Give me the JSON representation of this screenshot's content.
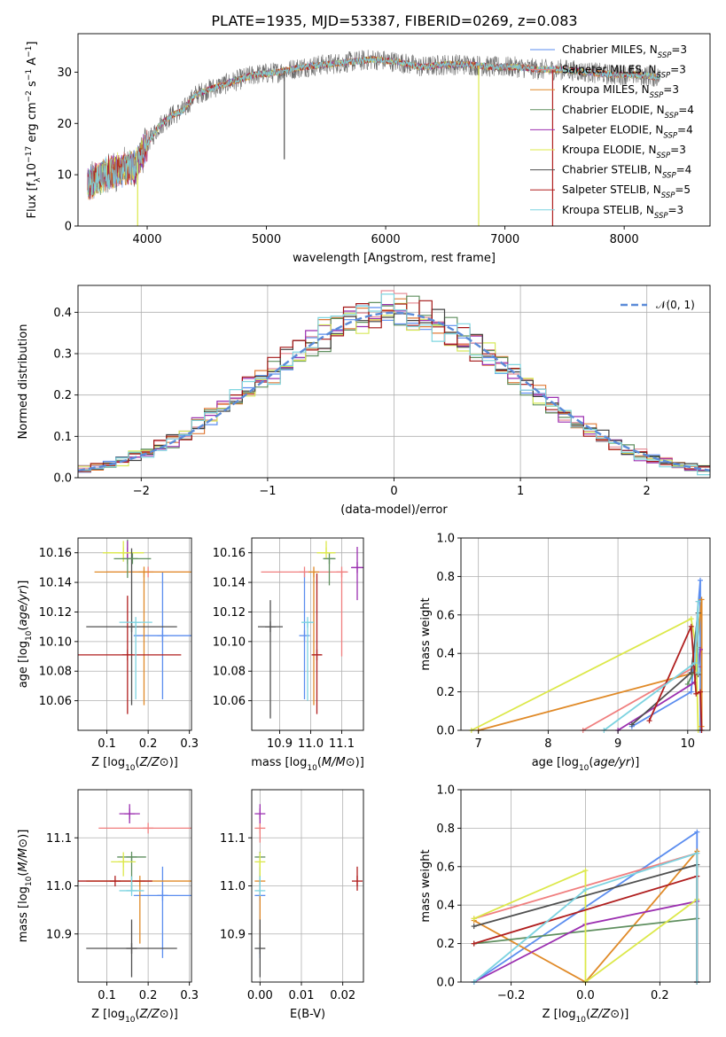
{
  "title": "PLATE=1935, MJD=53387, FIBERID=0269, z=0.083",
  "colors": [
    "#5b8def",
    "#f07f7f",
    "#e08a28",
    "#5f8f5f",
    "#9b2fb0",
    "#dce84a",
    "#505050",
    "#b01f1f",
    "#7dd3e0"
  ],
  "hist_colors": [
    "#5b8def",
    "#e7919a",
    "#e07b39",
    "#5f8f5f",
    "#9b2fb0",
    "#d6e85a",
    "#404040",
    "#a31515",
    "#7fd6e0"
  ],
  "chart_data": [
    {
      "id": "spectrum",
      "type": "line",
      "title": "PLATE=1935, MJD=53387, FIBERID=0269, z=0.083",
      "xlabel": "wavelength [Angstrom, rest frame]",
      "ylabel_parts": [
        "Flux [f",
        "λ",
        "10",
        "−17",
        " erg cm",
        "−2",
        " s",
        "−1",
        " A",
        "−1",
        "]"
      ],
      "xlim": [
        3420,
        8720
      ],
      "ylim": [
        0,
        37.5
      ],
      "xticks": [
        4000,
        5000,
        6000,
        7000,
        8000
      ],
      "yticks": [
        0,
        10,
        20,
        30
      ],
      "grid": false,
      "legend_position": "top-right",
      "legend": [
        {
          "text": "Chabrier MILES, N",
          "sub": "SSP",
          "tail": "=3"
        },
        {
          "text": "Salpeter MILES, N",
          "sub": "SSP",
          "tail": "=3"
        },
        {
          "text": "Kroupa MILES, N",
          "sub": "SSP",
          "tail": "=3"
        },
        {
          "text": "Chabrier ELODIE, N",
          "sub": "SSP",
          "tail": "=4"
        },
        {
          "text": "Salpeter ELODIE, N",
          "sub": "SSP",
          "tail": "=4"
        },
        {
          "text": "Kroupa ELODIE, N",
          "sub": "SSP",
          "tail": "=3"
        },
        {
          "text": "Chabrier STELIB, N",
          "sub": "SSP",
          "tail": "=4"
        },
        {
          "text": "Salpeter STELIB, N",
          "sub": "SSP",
          "tail": "=5"
        },
        {
          "text": "Kroupa STELIB, N",
          "sub": "SSP",
          "tail": "=3"
        }
      ],
      "continuum": {
        "x": [
          3500,
          3600,
          3700,
          3800,
          3900,
          4000,
          4100,
          4200,
          4300,
          4400,
          4500,
          4700,
          4900,
          5100,
          5300,
          5500,
          5700,
          5900,
          6100,
          6300,
          6500,
          6700,
          6900,
          7100,
          7300,
          7500,
          7700,
          7900,
          8100,
          8300
        ],
        "y": [
          8,
          9.5,
          10.5,
          11,
          11.5,
          16,
          19.5,
          21.5,
          22.5,
          25.5,
          26.5,
          28,
          29.5,
          30,
          31,
          31.5,
          32,
          32.5,
          32,
          31,
          31.5,
          31.5,
          31,
          31,
          30.5,
          30.5,
          30,
          29.5,
          29.5,
          29
        ]
      },
      "spikes": [
        {
          "x": 5150,
          "y_min": 13,
          "color_index": 6
        },
        {
          "x": 6780,
          "y_min": 0,
          "color_index": 5
        },
        {
          "x": 7400,
          "y_min": 0,
          "color_index": 7
        },
        {
          "x": 3920,
          "y_min": 0,
          "color_index": 5
        }
      ]
    },
    {
      "id": "residuals",
      "type": "histogram",
      "xlabel": "(data-model)/error",
      "ylabel": "Normed distribution",
      "xlim": [
        -2.5,
        2.5
      ],
      "ylim": [
        0,
        0.465
      ],
      "xticks": [
        -2,
        -1,
        0,
        1,
        2
      ],
      "yticks": [
        0.0,
        0.1,
        0.2,
        0.3,
        0.4
      ],
      "grid": true,
      "legend_position": "top-right",
      "reference_curve": {
        "label": "𝒩(0, 1)",
        "mean": 0,
        "sigma": 1,
        "color": "#5b8bd8"
      },
      "bin_width": 0.1,
      "bin_start": -2.5,
      "n_bins": 50
    },
    {
      "id": "age_vs_Z",
      "type": "scatter",
      "xlabel": "Z [log10(Z/Z⊙)]",
      "ylabel": "age  [log10(age/yr)]",
      "xlim": [
        0.03,
        0.305
      ],
      "ylim": [
        10.04,
        10.17
      ],
      "xticks": [
        0.1,
        0.2,
        0.3
      ],
      "yticks": [
        10.06,
        10.08,
        10.1,
        10.12,
        10.14,
        10.16
      ],
      "grid": true,
      "points": [
        {
          "x": 0.235,
          "y": 10.104,
          "xerr": 0.07,
          "yerr_lo": 0.043,
          "yerr_hi": 0.043,
          "color_index": 0
        },
        {
          "x": 0.2,
          "y": 10.147,
          "xerr": 0.1,
          "yerr_lo": 0.0,
          "yerr_hi": 0.0,
          "color_index": 1
        },
        {
          "x": 0.19,
          "y": 10.147,
          "xerr": 0.12,
          "yerr_lo": 0.09,
          "yerr_hi": 0.0,
          "color_index": 2
        },
        {
          "x": 0.15,
          "y": 10.156,
          "xerr": 0.0,
          "yerr_lo": 0.013,
          "yerr_hi": 0.013,
          "color_index": 3
        },
        {
          "x": 0.15,
          "y": 10.16,
          "xerr": 0.0,
          "yerr_lo": 0.004,
          "yerr_hi": 0.008,
          "color_index": 4
        },
        {
          "x": 0.14,
          "y": 10.16,
          "xerr": 0.05,
          "yerr_lo": 0.006,
          "yerr_hi": 0.008,
          "color_index": 5
        },
        {
          "x": 0.16,
          "y": 10.11,
          "xerr": 0.11,
          "yerr_lo": 0.053,
          "yerr_hi": 0.053,
          "color_index": 6
        },
        {
          "x": 0.15,
          "y": 10.091,
          "xerr": 0.13,
          "yerr_lo": 0.04,
          "yerr_hi": 0.04,
          "color_index": 7
        },
        {
          "x": 0.17,
          "y": 10.113,
          "xerr": 0.04,
          "yerr_lo": 0.052,
          "yerr_hi": 0.0,
          "color_index": 8
        },
        {
          "x": 0.162,
          "y": 10.156,
          "xerr": 0.045,
          "yerr_lo": 0.0,
          "yerr_hi": 0.0,
          "color_index": 3
        }
      ]
    },
    {
      "id": "age_vs_mass",
      "type": "scatter",
      "xlabel": "mass [log10(M/M⊙)]",
      "ylabel": "",
      "xlim": [
        10.81,
        11.17
      ],
      "ylim": [
        10.04,
        10.17
      ],
      "xticks": [
        10.9,
        11.0,
        11.1
      ],
      "yticks": [
        10.06,
        10.08,
        10.1,
        10.12,
        10.14,
        10.16
      ],
      "grid": true,
      "points": [
        {
          "x": 10.98,
          "y": 10.104,
          "xerr": 0.0,
          "yerr_lo": 0.043,
          "yerr_hi": 0.043,
          "color_index": 0
        },
        {
          "x": 10.98,
          "y": 10.147,
          "xerr": 0.14,
          "yerr_lo": 0.0,
          "yerr_hi": 0.0,
          "color_index": 1
        },
        {
          "x": 11.1,
          "y": 10.147,
          "xerr": 0.0,
          "yerr_lo": 0.057,
          "yerr_hi": 0.0,
          "color_index": 1
        },
        {
          "x": 11.01,
          "y": 10.147,
          "xerr": 0.0,
          "yerr_lo": 0.09,
          "yerr_hi": 0.0,
          "color_index": 2
        },
        {
          "x": 11.06,
          "y": 10.156,
          "xerr": 0.02,
          "yerr_lo": 0.018,
          "yerr_hi": 0.0,
          "color_index": 3
        },
        {
          "x": 11.15,
          "y": 10.15,
          "xerr": 0.02,
          "yerr_lo": 0.022,
          "yerr_hi": 0.014,
          "color_index": 4
        },
        {
          "x": 11.05,
          "y": 10.16,
          "xerr": 0.03,
          "yerr_lo": 0.0,
          "yerr_hi": 0.008,
          "color_index": 5
        },
        {
          "x": 10.87,
          "y": 10.11,
          "xerr": 0.04,
          "yerr_lo": 0.062,
          "yerr_hi": 0.018,
          "color_index": 6
        },
        {
          "x": 11.02,
          "y": 10.091,
          "xerr": 0.015,
          "yerr_lo": 0.04,
          "yerr_hi": 0.055,
          "color_index": 7
        },
        {
          "x": 10.99,
          "y": 10.113,
          "xerr": 0.02,
          "yerr_lo": 0.053,
          "yerr_hi": 0.0,
          "color_index": 8
        }
      ]
    },
    {
      "id": "weight_vs_age",
      "type": "line",
      "xlabel": "age  [log10(age/yr)]",
      "ylabel": "mass weight",
      "xlim": [
        6.75,
        10.32
      ],
      "ylim": [
        0,
        1
      ],
      "xticks": [
        7,
        8,
        9,
        10
      ],
      "yticks": [
        0.0,
        0.2,
        0.4,
        0.6,
        0.8,
        1.0
      ],
      "grid": true,
      "series": [
        {
          "color_index": 0,
          "x": [
            9.2,
            10.05,
            10.18,
            10.18
          ],
          "y": [
            0.02,
            0.2,
            0.78,
            0.0
          ]
        },
        {
          "color_index": 1,
          "x": [
            8.5,
            10.1,
            10.15
          ],
          "y": [
            0.0,
            0.33,
            0.67
          ]
        },
        {
          "color_index": 2,
          "x": [
            7.0,
            10.1,
            10.2,
            10.2
          ],
          "y": [
            0.0,
            0.3,
            0.68,
            0.02
          ]
        },
        {
          "color_index": 3,
          "x": [
            10.0,
            10.12,
            10.15
          ],
          "y": [
            0.24,
            0.33,
            0.43
          ]
        },
        {
          "color_index": 4,
          "x": [
            9.0,
            10.1,
            10.15,
            10.18
          ],
          "y": [
            0.0,
            0.25,
            0.33,
            0.42
          ]
        },
        {
          "color_index": 5,
          "x": [
            6.9,
            10.05,
            10.12,
            10.15
          ],
          "y": [
            0.0,
            0.58,
            0.43,
            0.0
          ]
        },
        {
          "color_index": 6,
          "x": [
            9.2,
            10.05,
            10.15,
            10.15
          ],
          "y": [
            0.03,
            0.3,
            0.61,
            0.29
          ]
        },
        {
          "color_index": 7,
          "x": [
            9.45,
            10.05,
            10.12,
            10.18,
            10.2
          ],
          "y": [
            0.05,
            0.54,
            0.19,
            0.2,
            0.0
          ]
        },
        {
          "color_index": 8,
          "x": [
            8.8,
            10.1,
            10.15,
            10.15
          ],
          "y": [
            0.0,
            0.35,
            0.67,
            0.3
          ]
        }
      ]
    },
    {
      "id": "mass_vs_Z",
      "type": "scatter",
      "xlabel": "Z [log10(Z/Z⊙)]",
      "ylabel": "mass [log10(M/M⊙)]",
      "xlim": [
        0.03,
        0.305
      ],
      "ylim": [
        10.8,
        11.2
      ],
      "xticks": [
        0.1,
        0.2,
        0.3
      ],
      "yticks": [
        10.9,
        11.0,
        11.1
      ],
      "grid": true,
      "points": [
        {
          "x": 0.235,
          "y": 10.98,
          "xerr": 0.07,
          "yerr_lo": 0.13,
          "yerr_hi": 0.06,
          "color_index": 0
        },
        {
          "x": 0.2,
          "y": 11.12,
          "xerr": 0.12,
          "yerr_lo": 0.0,
          "yerr_hi": 0.0,
          "color_index": 1
        },
        {
          "x": 0.18,
          "y": 11.01,
          "xerr": 0.13,
          "yerr_lo": 0.13,
          "yerr_hi": 0.0,
          "color_index": 2
        },
        {
          "x": 0.16,
          "y": 11.06,
          "xerr": 0.035,
          "yerr_lo": 0.07,
          "yerr_hi": 0.0,
          "color_index": 3
        },
        {
          "x": 0.155,
          "y": 11.15,
          "xerr": 0.025,
          "yerr_lo": 0.02,
          "yerr_hi": 0.02,
          "color_index": 4
        },
        {
          "x": 0.14,
          "y": 11.05,
          "xerr": 0.03,
          "yerr_lo": 0.03,
          "yerr_hi": 0.02,
          "color_index": 5
        },
        {
          "x": 0.16,
          "y": 10.87,
          "xerr": 0.11,
          "yerr_lo": 0.06,
          "yerr_hi": 0.06,
          "color_index": 6
        },
        {
          "x": 0.12,
          "y": 11.01,
          "xerr": 0.09,
          "yerr_lo": 0.0,
          "yerr_hi": 0.0,
          "color_index": 7
        },
        {
          "x": 0.16,
          "y": 10.99,
          "xerr": 0.03,
          "yerr_lo": 0.0,
          "yerr_hi": 0.03,
          "color_index": 8
        }
      ]
    },
    {
      "id": "mass_vs_ebv",
      "type": "scatter",
      "xlabel": "E(B-V)",
      "ylabel": "",
      "xlim": [
        -0.002,
        0.025
      ],
      "ylim": [
        10.8,
        11.2
      ],
      "xticks": [
        0.0,
        0.01,
        0.02
      ],
      "yticks": [
        10.9,
        11.0,
        11.1
      ],
      "grid": true,
      "points": [
        {
          "x": 0.0,
          "y": 10.98,
          "xerr": 0.0,
          "yerr_lo": 0.13,
          "yerr_hi": 0.06,
          "color_index": 0
        },
        {
          "x": 0.0,
          "y": 11.12,
          "xerr": 0.0,
          "yerr_lo": 0.03,
          "yerr_hi": 0.03,
          "color_index": 1
        },
        {
          "x": 0.0,
          "y": 11.01,
          "xerr": 0.0,
          "yerr_lo": 0.13,
          "yerr_hi": 0.0,
          "color_index": 2
        },
        {
          "x": 0.0,
          "y": 11.06,
          "xerr": 0.0,
          "yerr_lo": 0.07,
          "yerr_hi": 0.0,
          "color_index": 3
        },
        {
          "x": 0.0,
          "y": 11.15,
          "xerr": 0.0,
          "yerr_lo": 0.02,
          "yerr_hi": 0.02,
          "color_index": 4
        },
        {
          "x": 0.0,
          "y": 11.05,
          "xerr": 0.0,
          "yerr_lo": 0.03,
          "yerr_hi": 0.02,
          "color_index": 5
        },
        {
          "x": 0.0,
          "y": 10.87,
          "xerr": 0.0,
          "yerr_lo": 0.06,
          "yerr_hi": 0.06,
          "color_index": 6
        },
        {
          "x": 0.0235,
          "y": 11.01,
          "xerr": 0.0,
          "yerr_lo": 0.02,
          "yerr_hi": 0.03,
          "color_index": 7
        },
        {
          "x": 0.0,
          "y": 10.99,
          "xerr": 0.0,
          "yerr_lo": 0.0,
          "yerr_hi": 0.03,
          "color_index": 8
        }
      ]
    },
    {
      "id": "weight_vs_Z",
      "type": "line",
      "xlabel": "Z [log10(Z/Z⊙)]",
      "ylabel": "mass weight",
      "xlim": [
        -0.335,
        0.335
      ],
      "ylim": [
        0,
        1
      ],
      "xticks": [
        -0.2,
        0.0,
        0.2
      ],
      "yticks": [
        0.0,
        0.2,
        0.4,
        0.6,
        0.8,
        1.0
      ],
      "grid": true,
      "series": [
        {
          "color_index": 0,
          "x": [
            -0.3,
            0.3,
            0.3
          ],
          "y": [
            0.0,
            0.78,
            0.0
          ]
        },
        {
          "color_index": 1,
          "x": [
            -0.3,
            0.3,
            0.3
          ],
          "y": [
            0.33,
            0.67,
            0.0
          ]
        },
        {
          "color_index": 2,
          "x": [
            -0.3,
            0.0,
            0.3,
            0.3
          ],
          "y": [
            0.32,
            0.0,
            0.68,
            0.0
          ]
        },
        {
          "color_index": 3,
          "x": [
            -0.3,
            0.3,
            0.3
          ],
          "y": [
            0.2,
            0.33,
            0.0
          ]
        },
        {
          "color_index": 4,
          "x": [
            -0.3,
            0.0,
            0.3,
            0.3
          ],
          "y": [
            0.0,
            0.3,
            0.42,
            0.0
          ]
        },
        {
          "color_index": 5,
          "x": [
            -0.3,
            0.0,
            0.0,
            0.3
          ],
          "y": [
            0.33,
            0.58,
            0.0,
            0.43
          ]
        },
        {
          "color_index": 6,
          "x": [
            -0.3,
            0.3,
            0.3
          ],
          "y": [
            0.29,
            0.61,
            0.0
          ]
        },
        {
          "color_index": 7,
          "x": [
            -0.3,
            0.3,
            0.3
          ],
          "y": [
            0.2,
            0.55,
            0.0
          ]
        },
        {
          "color_index": 8,
          "x": [
            -0.3,
            0.0,
            0.3,
            0.3
          ],
          "y": [
            0.0,
            0.48,
            0.67,
            0.0
          ]
        }
      ]
    }
  ]
}
